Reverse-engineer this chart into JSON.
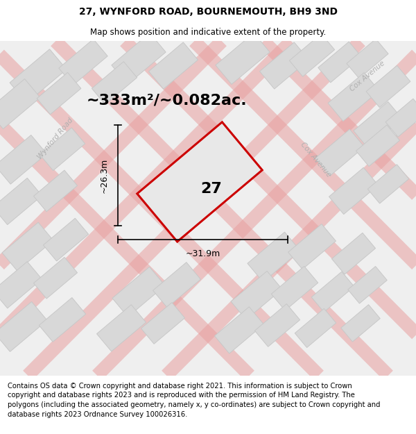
{
  "title_line1": "27, WYNFORD ROAD, BOURNEMOUTH, BH9 3ND",
  "title_line2": "Map shows position and indicative extent of the property.",
  "footer_text": "Contains OS data © Crown copyright and database right 2021. This information is subject to Crown copyright and database rights 2023 and is reproduced with the permission of HM Land Registry. The polygons (including the associated geometry, namely x, y co-ordinates) are subject to Crown copyright and database rights 2023 Ordnance Survey 100026316.",
  "area_label": "~333m²/~0.082ac.",
  "plot_number": "27",
  "dim_width": "~31.9m",
  "dim_height": "~26.3m",
  "road_label_wynford": "Wynford Road",
  "road_label_cox1": "Cox Avenue",
  "road_label_cox2": "Cox Avenue",
  "map_bg": "#efefef",
  "plot_fill": "#e8e8e8",
  "plot_edge": "#cc0000",
  "block_fill": "#d8d8d8",
  "block_edge": "#c8c8c8",
  "road_color": "#e8a0a0",
  "road_alpha": 0.55,
  "road_lw": 14,
  "title_fontsize": 10,
  "subtitle_fontsize": 8.5,
  "footer_fontsize": 7.2,
  "area_fontsize": 16,
  "plot_num_fontsize": 16,
  "road_label_fontsize": 7.5,
  "dim_fontsize": 9
}
